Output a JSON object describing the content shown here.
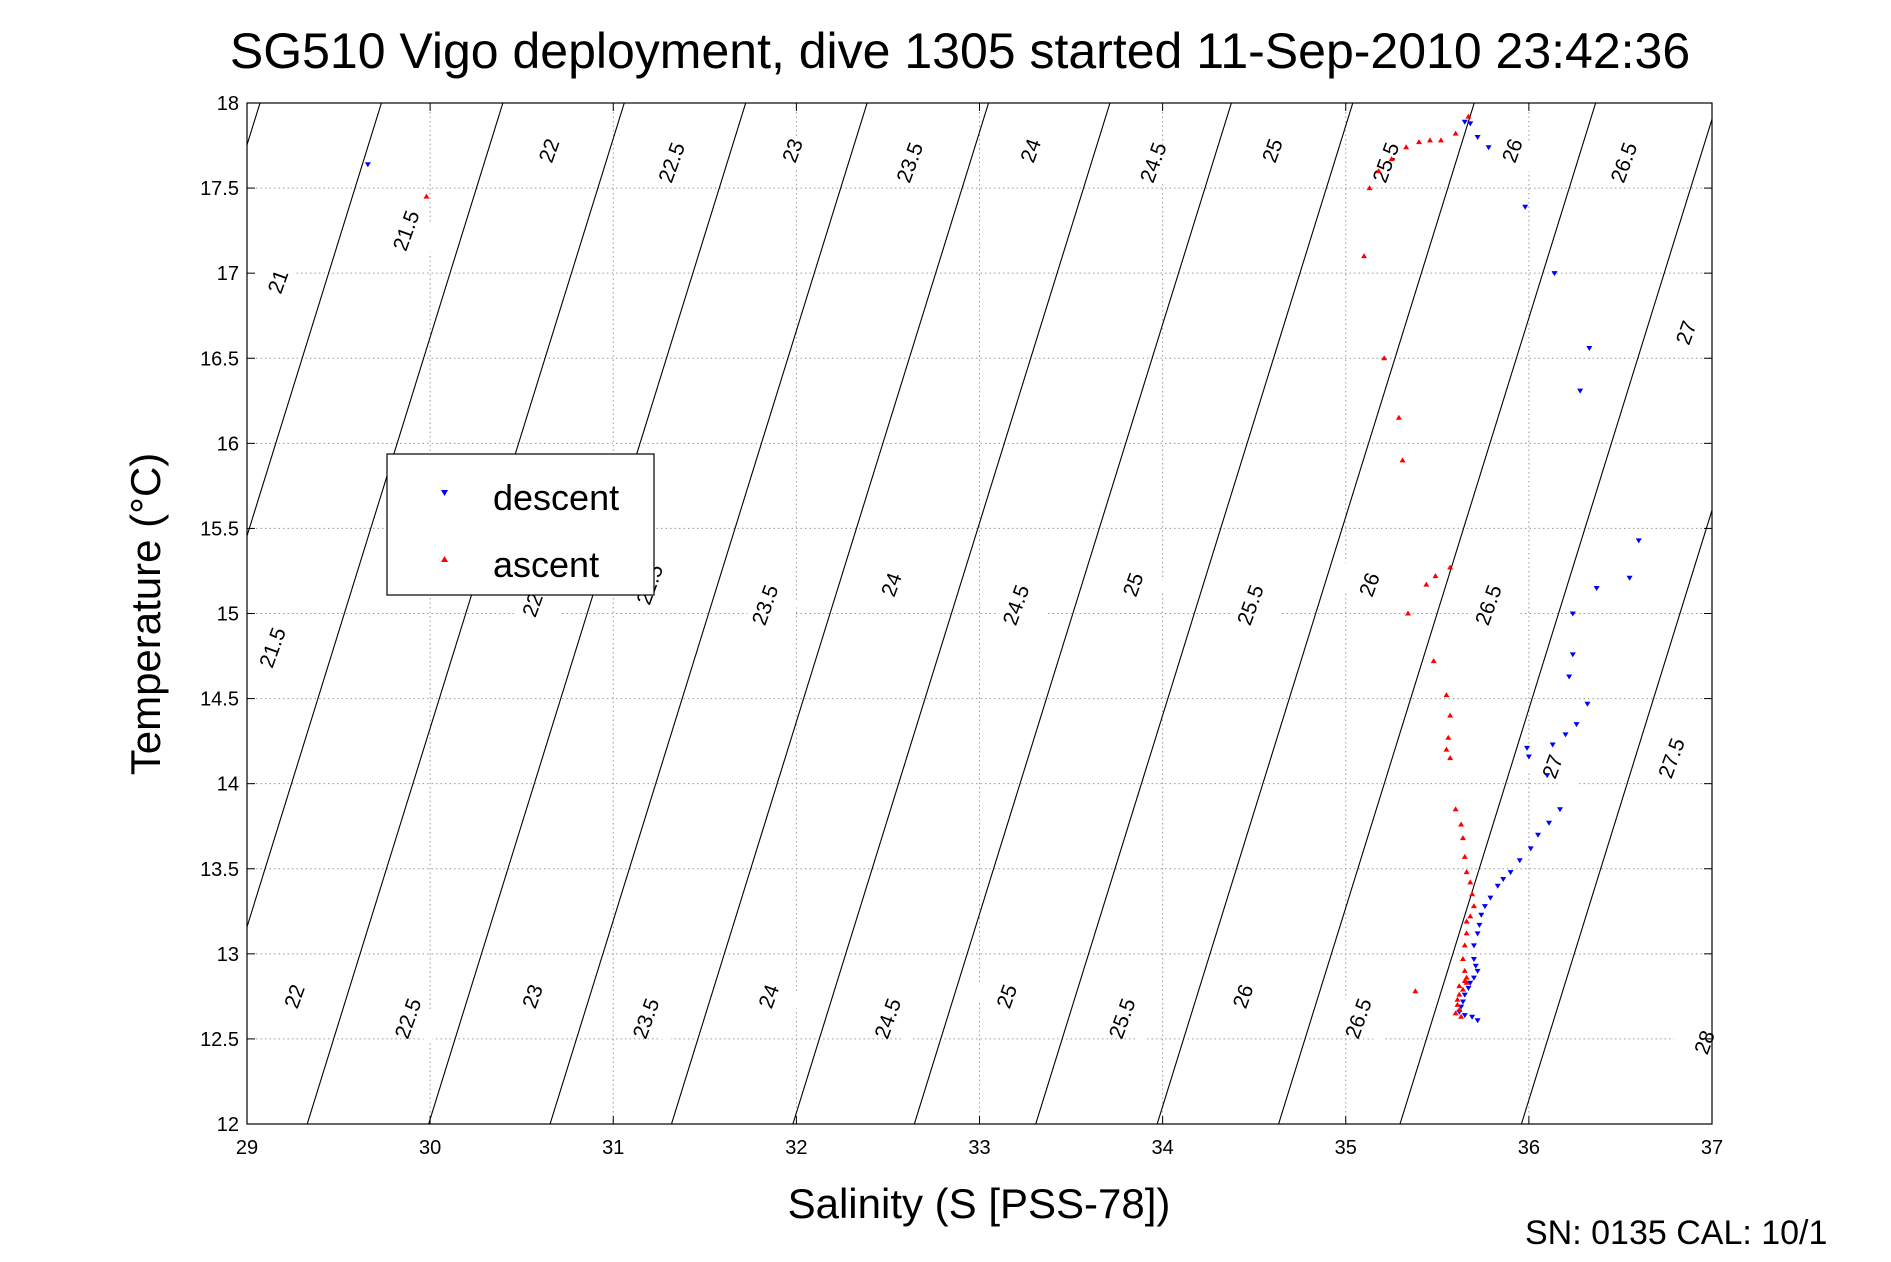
{
  "chart_data": {
    "type": "scatter",
    "title": "SG510 Vigo deployment, dive 1305 started 11-Sep-2010 23:42:36",
    "xlabel": "Salinity (S [PSS-78])",
    "ylabel": "Temperature (°C)",
    "footer": "SN: 0135  CAL: 10/1",
    "xlim": [
      29,
      37
    ],
    "ylim": [
      12,
      18
    ],
    "xticks": [
      "29",
      "30",
      "31",
      "32",
      "33",
      "34",
      "35",
      "36",
      "37"
    ],
    "yticks": [
      "12",
      "12.5",
      "13",
      "13.5",
      "14",
      "14.5",
      "15",
      "15.5",
      "16",
      "16.5",
      "17",
      "17.5",
      "18"
    ],
    "grid": true,
    "legend": {
      "placement": "left-middle",
      "entries": [
        "descent",
        "ascent"
      ]
    },
    "colors": {
      "descent": "#0000ff",
      "ascent": "#ff0000",
      "contour": "#000000",
      "grid": "#9a9a9a"
    },
    "contour_labels": [
      {
        "text": "21",
        "s": 29.17,
        "t": 16.95
      },
      {
        "text": "21.5",
        "s": 29.87,
        "t": 17.25
      },
      {
        "text": "22",
        "s": 30.65,
        "t": 17.72
      },
      {
        "text": "22.5",
        "s": 31.32,
        "t": 17.65
      },
      {
        "text": "23",
        "s": 31.98,
        "t": 17.72
      },
      {
        "text": "23.5",
        "s": 32.62,
        "t": 17.65
      },
      {
        "text": "24",
        "s": 33.28,
        "t": 17.72
      },
      {
        "text": "24.5",
        "s": 33.95,
        "t": 17.65
      },
      {
        "text": "25",
        "s": 34.6,
        "t": 17.72
      },
      {
        "text": "25.5",
        "s": 35.22,
        "t": 17.65
      },
      {
        "text": "26",
        "s": 35.91,
        "t": 17.72
      },
      {
        "text": "26.5",
        "s": 36.52,
        "t": 17.65
      },
      {
        "text": "27",
        "s": 36.86,
        "t": 16.65
      },
      {
        "text": "21.5",
        "s": 29.14,
        "t": 14.8
      },
      {
        "text": "22",
        "s": 30.56,
        "t": 15.05
      },
      {
        "text": "22.5",
        "s": 31.2,
        "t": 15.17
      },
      {
        "text": "23.5",
        "s": 31.83,
        "t": 15.05
      },
      {
        "text": "24",
        "s": 32.52,
        "t": 15.17
      },
      {
        "text": "24.5",
        "s": 33.2,
        "t": 15.05
      },
      {
        "text": "25",
        "s": 33.84,
        "t": 15.17
      },
      {
        "text": "25.5",
        "s": 34.48,
        "t": 15.05
      },
      {
        "text": "26",
        "s": 35.13,
        "t": 15.17
      },
      {
        "text": "26.5",
        "s": 35.78,
        "t": 15.05
      },
      {
        "text": "27",
        "s": 36.13,
        "t": 14.1
      },
      {
        "text": "27.5",
        "s": 36.78,
        "t": 14.15
      },
      {
        "text": "22",
        "s": 29.26,
        "t": 12.75
      },
      {
        "text": "22.5",
        "s": 29.88,
        "t": 12.62
      },
      {
        "text": "23",
        "s": 30.56,
        "t": 12.75
      },
      {
        "text": "23.5",
        "s": 31.18,
        "t": 12.62
      },
      {
        "text": "24",
        "s": 31.85,
        "t": 12.75
      },
      {
        "text": "24.5",
        "s": 32.5,
        "t": 12.62
      },
      {
        "text": "25",
        "s": 33.15,
        "t": 12.75
      },
      {
        "text": "25.5",
        "s": 33.78,
        "t": 12.62
      },
      {
        "text": "26",
        "s": 34.44,
        "t": 12.75
      },
      {
        "text": "26.5",
        "s": 35.07,
        "t": 12.62
      },
      {
        "text": "28",
        "s": 36.96,
        "t": 12.48
      }
    ],
    "series": [
      {
        "name": "descent",
        "points": [
          [
            29.66,
            17.64
          ],
          [
            35.65,
            17.89
          ],
          [
            35.68,
            17.88
          ],
          [
            35.72,
            17.8
          ],
          [
            35.78,
            17.74
          ],
          [
            35.98,
            17.39
          ],
          [
            36.14,
            17.0
          ],
          [
            36.33,
            16.56
          ],
          [
            36.28,
            16.31
          ],
          [
            36.6,
            15.43
          ],
          [
            36.55,
            15.21
          ],
          [
            36.37,
            15.15
          ],
          [
            36.24,
            15.0
          ],
          [
            36.24,
            14.76
          ],
          [
            36.22,
            14.63
          ],
          [
            36.32,
            14.47
          ],
          [
            36.26,
            14.35
          ],
          [
            36.2,
            14.29
          ],
          [
            36.13,
            14.23
          ],
          [
            35.99,
            14.21
          ],
          [
            36.0,
            14.16
          ],
          [
            36.1,
            14.05
          ],
          [
            36.17,
            13.85
          ],
          [
            36.11,
            13.77
          ],
          [
            36.05,
            13.7
          ],
          [
            36.01,
            13.62
          ],
          [
            35.95,
            13.55
          ],
          [
            35.9,
            13.48
          ],
          [
            35.86,
            13.44
          ],
          [
            35.83,
            13.4
          ],
          [
            35.79,
            13.33
          ],
          [
            35.76,
            13.28
          ],
          [
            35.74,
            13.23
          ],
          [
            35.73,
            13.17
          ],
          [
            35.72,
            13.12
          ],
          [
            35.7,
            13.05
          ],
          [
            35.7,
            12.97
          ],
          [
            35.71,
            12.93
          ],
          [
            35.72,
            12.9
          ],
          [
            35.7,
            12.86
          ],
          [
            35.68,
            12.83
          ],
          [
            35.67,
            12.8
          ],
          [
            35.65,
            12.76
          ],
          [
            35.64,
            12.72
          ],
          [
            35.63,
            12.69
          ],
          [
            35.62,
            12.66
          ],
          [
            35.65,
            12.64
          ],
          [
            35.69,
            12.63
          ],
          [
            35.72,
            12.61
          ]
        ]
      },
      {
        "name": "ascent",
        "points": [
          [
            29.98,
            17.45
          ],
          [
            35.67,
            17.92
          ],
          [
            35.6,
            17.82
          ],
          [
            35.52,
            17.78
          ],
          [
            35.46,
            17.78
          ],
          [
            35.4,
            17.77
          ],
          [
            35.33,
            17.74
          ],
          [
            35.25,
            17.67
          ],
          [
            35.18,
            17.6
          ],
          [
            35.13,
            17.5
          ],
          [
            35.1,
            17.1
          ],
          [
            35.21,
            16.5
          ],
          [
            35.29,
            16.15
          ],
          [
            35.31,
            15.9
          ],
          [
            35.57,
            15.27
          ],
          [
            35.49,
            15.22
          ],
          [
            35.44,
            15.17
          ],
          [
            35.34,
            15.0
          ],
          [
            35.48,
            14.72
          ],
          [
            35.55,
            14.52
          ],
          [
            35.57,
            14.4
          ],
          [
            35.56,
            14.27
          ],
          [
            35.55,
            14.2
          ],
          [
            35.57,
            14.15
          ],
          [
            35.6,
            13.85
          ],
          [
            35.63,
            13.76
          ],
          [
            35.64,
            13.68
          ],
          [
            35.65,
            13.57
          ],
          [
            35.66,
            13.48
          ],
          [
            35.68,
            13.42
          ],
          [
            35.69,
            13.35
          ],
          [
            35.7,
            13.28
          ],
          [
            35.68,
            13.22
          ],
          [
            35.66,
            13.19
          ],
          [
            35.66,
            13.12
          ],
          [
            35.65,
            13.05
          ],
          [
            35.64,
            12.97
          ],
          [
            35.65,
            12.9
          ],
          [
            35.66,
            12.86
          ],
          [
            35.66,
            12.83
          ],
          [
            35.64,
            12.79
          ],
          [
            35.62,
            12.76
          ],
          [
            35.61,
            12.73
          ],
          [
            35.61,
            12.7
          ],
          [
            35.62,
            12.67
          ],
          [
            35.6,
            12.65
          ],
          [
            35.63,
            12.63
          ],
          [
            35.62,
            12.81
          ],
          [
            35.65,
            12.84
          ],
          [
            35.38,
            12.78
          ]
        ]
      }
    ]
  }
}
